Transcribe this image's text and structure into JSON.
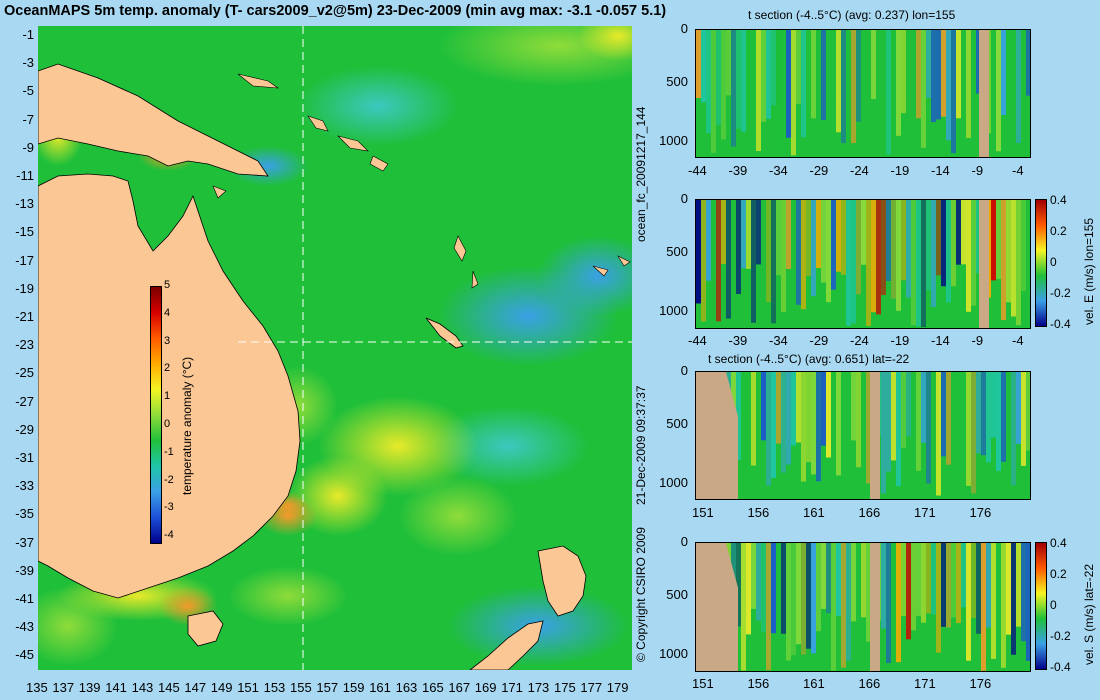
{
  "map": {
    "title": "OceanMAPS 5m temp. anomaly (T- cars2009_v2@5m) 23-Dec-2009 (min avg max: -3.1 -0.057 5.1)",
    "lat_ticks": [
      "-1",
      "-3",
      "-5",
      "-7",
      "-9",
      "-11",
      "-13",
      "-15",
      "-17",
      "-19",
      "-21",
      "-23",
      "-25",
      "-27",
      "-29",
      "-31",
      "-33",
      "-35",
      "-37",
      "-39",
      "-41",
      "-43",
      "-45"
    ],
    "lon_ticks": [
      "135",
      "137",
      "139",
      "141",
      "143",
      "145",
      "147",
      "149",
      "151",
      "153",
      "155",
      "157",
      "159",
      "161",
      "163",
      "165",
      "167",
      "169",
      "171",
      "173",
      "175",
      "177",
      "179"
    ],
    "colorbar": {
      "label": "temperature anomaly (°C)",
      "ticks": [
        "5",
        "4",
        "3",
        "2",
        "1",
        "0",
        "-1",
        "-2",
        "-3",
        "-4"
      ]
    }
  },
  "vertical_labels": {
    "ocean_fc": "ocean_fc_20091217_144",
    "run_date": "21-Dec-2009 09:37:37",
    "copyright": "© Copyright CSIRO 2009"
  },
  "sections": [
    {
      "title": "t section (-4..5°C) (avg: 0.237) lon=155",
      "depth_ticks": [
        "0",
        "500",
        "1000"
      ],
      "x_ticks": [
        "-44",
        "-39",
        "-34",
        "-29",
        "-24",
        "-19",
        "-14",
        "-9",
        "-4"
      ],
      "colorbar_label": ""
    },
    {
      "title": "",
      "depth_ticks": [
        "0",
        "500",
        "1000"
      ],
      "x_ticks": [
        "-44",
        "-39",
        "-34",
        "-29",
        "-24",
        "-19",
        "-14",
        "-9",
        "-4"
      ],
      "colorbar_label": "vel. E (m/s) lon=155",
      "colorbar_ticks": [
        "0.4",
        "0.2",
        "0",
        "-0.2",
        "-0.4"
      ]
    },
    {
      "title": "t section (-4..5°C) (avg: 0.651) lat=-22",
      "depth_ticks": [
        "0",
        "500",
        "1000"
      ],
      "x_ticks": [
        "151",
        "156",
        "161",
        "166",
        "171",
        "176"
      ],
      "colorbar_label": ""
    },
    {
      "title": "",
      "depth_ticks": [
        "0",
        "500",
        "1000"
      ],
      "x_ticks": [
        "151",
        "156",
        "161",
        "166",
        "171",
        "176"
      ],
      "colorbar_label": "vel. S (m/s) lat=-22",
      "colorbar_ticks": [
        "0.4",
        "0.2",
        "0",
        "-0.2",
        "-0.4"
      ]
    }
  ]
}
